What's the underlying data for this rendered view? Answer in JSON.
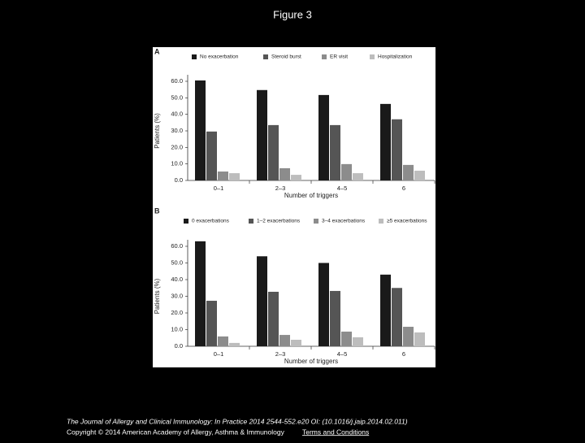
{
  "title": "Figure 3",
  "chart_data": [
    {
      "type": "bar",
      "panel": "A",
      "ylabel": "Patients (%)",
      "xlabel": "Number of triggers",
      "categories": [
        "0–1",
        "2–3",
        "4–5",
        "6"
      ],
      "series": [
        {
          "name": "No exacerbation",
          "color": "#1a1a1a",
          "values": [
            60.5,
            54.7,
            51.7,
            46.3
          ]
        },
        {
          "name": "Steroid burst",
          "color": "#555555",
          "values": [
            29.6,
            33.5,
            33.5,
            37.0
          ]
        },
        {
          "name": "ER visit",
          "color": "#8c8c8c",
          "values": [
            5.4,
            7.4,
            9.9,
            9.4
          ]
        },
        {
          "name": "Hospitalization",
          "color": "#bdbdbd",
          "values": [
            4.4,
            3.4,
            4.4,
            5.9
          ]
        }
      ],
      "ylim": [
        0,
        60
      ],
      "yticks": [
        {
          "value": 0,
          "label": "0.0"
        },
        {
          "value": 10,
          "label": "10.0"
        },
        {
          "value": 20,
          "label": "20.0"
        },
        {
          "value": 30,
          "label": "30.0"
        },
        {
          "value": 40,
          "label": "40.0"
        },
        {
          "value": 50,
          "label": "50.0"
        },
        {
          "value": 60,
          "label": "60.0"
        }
      ]
    },
    {
      "type": "bar",
      "panel": "B",
      "ylabel": "Patients (%)",
      "xlabel": "Number of triggers",
      "categories": [
        "0–1",
        "2–3",
        "4–5",
        "6"
      ],
      "series": [
        {
          "name": "0 exacerbations",
          "color": "#1a1a1a",
          "values": [
            63.0,
            54.0,
            50.0,
            43.0
          ]
        },
        {
          "name": "1–2 exacerbations",
          "color": "#555555",
          "values": [
            27.3,
            32.7,
            33.2,
            35.0
          ]
        },
        {
          "name": "3–4 exacerbations",
          "color": "#8c8c8c",
          "values": [
            5.9,
            6.8,
            8.8,
            11.7
          ]
        },
        {
          "name": "≥5 exacerbations",
          "color": "#bdbdbd",
          "values": [
            2.0,
            3.9,
            5.4,
            8.3
          ]
        }
      ],
      "ylim": [
        0,
        60
      ],
      "yticks": [
        {
          "value": 0,
          "label": "0.0"
        },
        {
          "value": 10,
          "label": "10.0"
        },
        {
          "value": 20,
          "label": "20.0"
        },
        {
          "value": 30,
          "label": "30.0"
        },
        {
          "value": 40,
          "label": "40.0"
        },
        {
          "value": 50,
          "label": "50.0"
        },
        {
          "value": 60,
          "label": "60.0"
        }
      ]
    }
  ],
  "footer": {
    "citation": "The Journal of Allergy and Clinical Immunology: In Practice 2014 2544-552.e20 OI: (10.1016/j.jaip.2014.02.011)",
    "copyright": "Copyright © 2014 American Academy of Allergy, Asthma & Immunology",
    "link": "Terms and Conditions"
  }
}
